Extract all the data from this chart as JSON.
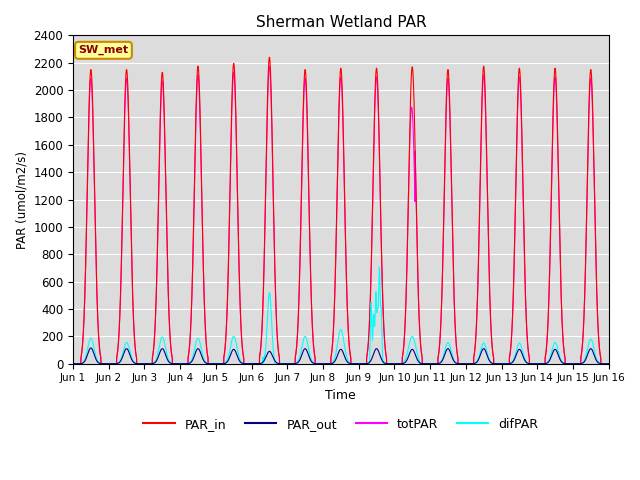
{
  "title": "Sherman Wetland PAR",
  "ylabel": "PAR (umol/m2/s)",
  "xlabel": "Time",
  "site_label": "SW_met",
  "ylim": [
    0,
    2400
  ],
  "xlim_days": [
    0,
    15
  ],
  "legend_labels": [
    "PAR_in",
    "PAR_out",
    "totPAR",
    "difPAR"
  ],
  "legend_colors": [
    "#ff0000",
    "#00008b",
    "#ff00ff",
    "#00ffff"
  ],
  "background_color": "#dcdcdc",
  "x_tick_labels": [
    "Jun 1",
    "Jun 2",
    "Jun 3",
    "Jun 4",
    "Jun 5",
    "Jun 6",
    "Jun 7",
    "Jun 8",
    "Jun 9",
    "Jun 10",
    "Jun 11",
    "Jun 12",
    "Jun 13",
    "Jun 14",
    "Jun 15",
    "Jun 16"
  ],
  "n_days": 15,
  "par_in_peaks": [
    2150,
    2150,
    2130,
    2175,
    2195,
    2240,
    2150,
    2160,
    2160,
    2170,
    2150,
    2175,
    2160,
    2160,
    2150
  ],
  "par_out_peaks": [
    115,
    110,
    110,
    110,
    105,
    90,
    110,
    105,
    110,
    105,
    110,
    110,
    105,
    105,
    110
  ],
  "difpar_peaks": [
    185,
    155,
    195,
    185,
    200,
    520,
    200,
    250,
    700,
    150,
    155,
    150,
    150,
    155,
    180
  ],
  "figsize": [
    6.4,
    4.8
  ],
  "dpi": 100
}
